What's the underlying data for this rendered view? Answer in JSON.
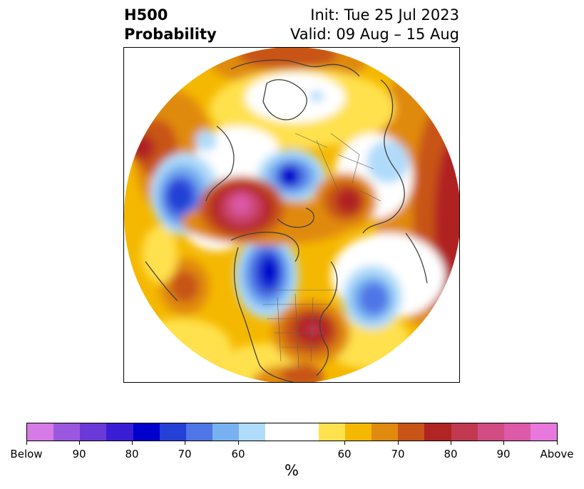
{
  "header": {
    "title_line1": "H500",
    "title_line2": "Probability",
    "init_text": "Init: Tue 25 Jul 2023",
    "valid_text": "Valid: 09 Aug – 15 Aug"
  },
  "colorbar": {
    "segments": [
      "#d67ae6",
      "#9b57e0",
      "#6a3ad8",
      "#3a1ed6",
      "#0000cc",
      "#2440d6",
      "#4f76e6",
      "#78b1f0",
      "#b0dcfa",
      "#ffffff",
      "#ffffff",
      "#ffe14d",
      "#f5b800",
      "#e08a10",
      "#c85416",
      "#b02424",
      "#c23850",
      "#d04c82",
      "#dc5aa8",
      "#e878dc"
    ],
    "tick_labels": [
      "Below",
      "90",
      "80",
      "70",
      "60",
      "60",
      "70",
      "80",
      "90",
      "Above"
    ],
    "units_label": "%"
  }
}
